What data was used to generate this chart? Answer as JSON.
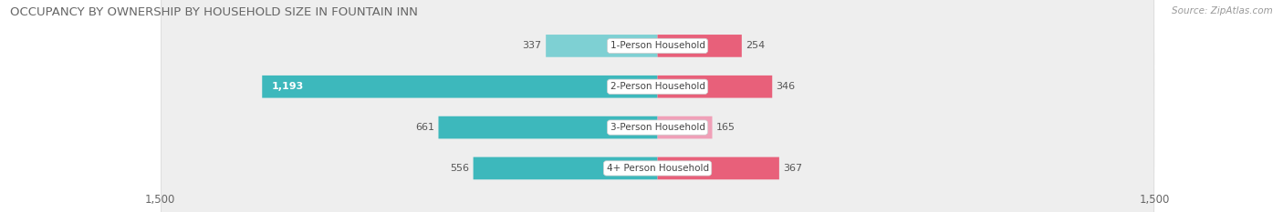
{
  "title": "OCCUPANCY BY OWNERSHIP BY HOUSEHOLD SIZE IN FOUNTAIN INN",
  "source": "Source: ZipAtlas.com",
  "categories": [
    "1-Person Household",
    "2-Person Household",
    "3-Person Household",
    "4+ Person Household"
  ],
  "owner_values": [
    337,
    1193,
    661,
    556
  ],
  "renter_values": [
    254,
    346,
    165,
    367
  ],
  "owner_color_dark": "#3db8bc",
  "owner_color_light": "#7ed0d3",
  "renter_color_dark": "#e8607a",
  "renter_color_light": "#f0a0b8",
  "row_bg_color": "#eeeeee",
  "row_border_color": "#dddddd",
  "max_val": 1500,
  "title_fontsize": 9.5,
  "label_fontsize": 8,
  "tick_fontsize": 8.5,
  "source_fontsize": 7.5,
  "cat_fontsize": 7.5,
  "val_inside_color": "#ffffff",
  "val_outside_color": "#555555"
}
